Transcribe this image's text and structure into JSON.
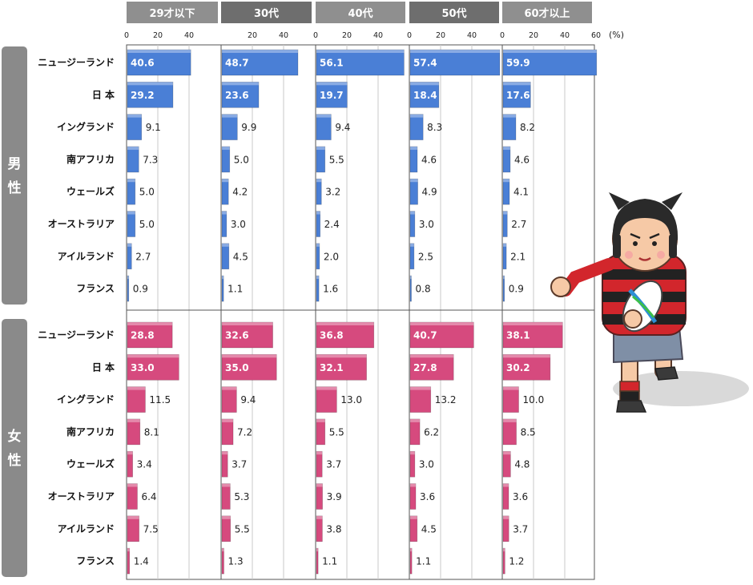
{
  "chart_data": {
    "type": "bar",
    "orientation": "horizontal",
    "unit": "(%)",
    "age_groups": [
      "29才以下",
      "30代",
      "40代",
      "50代",
      "60才以上"
    ],
    "categories": [
      "ニュージーランド",
      "日 本",
      "イングランド",
      "南アフリカ",
      "ウェールズ",
      "オーストラリア",
      "アイルランド",
      "フランス"
    ],
    "xlim": [
      0,
      60
    ],
    "xticks": [
      "0",
      "20",
      "40",
      "20",
      "40",
      "0",
      "20",
      "40",
      "0",
      "20",
      "40",
      "0",
      "20",
      "40",
      "60"
    ],
    "groups": [
      {
        "label": "男性",
        "color": "#4a7fd6",
        "series": [
          {
            "age": "29才以下",
            "values": [
              40.6,
              29.2,
              9.1,
              7.3,
              5.0,
              5.0,
              2.7,
              0.9
            ],
            "labels": [
              "40.6",
              "29.2",
              "9.1",
              "7.3",
              "5.0",
              "5.0",
              "2.7",
              "0.9"
            ]
          },
          {
            "age": "30代",
            "values": [
              48.7,
              23.6,
              9.9,
              5.0,
              4.2,
              3.0,
              4.5,
              1.1
            ],
            "labels": [
              "48.7",
              "23.6",
              "9.9",
              "5.0",
              "4.2",
              "3.0",
              "4.5",
              "1.1"
            ]
          },
          {
            "age": "40代",
            "values": [
              56.1,
              19.7,
              9.4,
              5.5,
              3.2,
              2.4,
              2.0,
              1.6
            ],
            "labels": [
              "56.1",
              "19.7",
              "9.4",
              "5.5",
              "3.2",
              "2.4",
              "2.0",
              "1.6"
            ]
          },
          {
            "age": "50代",
            "values": [
              57.4,
              18.4,
              8.3,
              4.6,
              4.9,
              3.0,
              2.5,
              0.8
            ],
            "labels": [
              "57.4",
              "18.4",
              "8.3",
              "4.6",
              "4.9",
              "3.0",
              "2.5",
              "0.8"
            ]
          },
          {
            "age": "60才以上",
            "values": [
              59.9,
              17.6,
              8.2,
              4.6,
              4.1,
              2.7,
              2.1,
              0.9
            ],
            "labels": [
              "59.9",
              "17.6",
              "8.2",
              "4.6",
              "4.1",
              "2.7",
              "2.1",
              "0.9"
            ]
          }
        ]
      },
      {
        "label": "女性",
        "color": "#d64a7e",
        "series": [
          {
            "age": "29才以下",
            "values": [
              28.8,
              33.0,
              11.5,
              8.1,
              3.4,
              6.4,
              7.5,
              1.4
            ],
            "labels": [
              "28.8",
              "33.0",
              "11.5",
              "8.1",
              "3.4",
              "6.4",
              "7.5",
              "1.4"
            ]
          },
          {
            "age": "30代",
            "values": [
              32.6,
              35.0,
              9.4,
              7.2,
              3.7,
              5.3,
              5.5,
              1.3
            ],
            "labels": [
              "32.6",
              "35.0",
              "9.4",
              "7.2",
              "3.7",
              "5.3",
              "5.5",
              "1.3"
            ]
          },
          {
            "age": "40代",
            "values": [
              36.8,
              32.1,
              13.0,
              5.5,
              3.7,
              3.9,
              3.8,
              1.1
            ],
            "labels": [
              "36.8",
              "32.1",
              "13.0",
              "5.5",
              "3.7",
              "3.9",
              "3.8",
              "1.1"
            ]
          },
          {
            "age": "50代",
            "values": [
              40.7,
              27.8,
              13.2,
              6.2,
              3.0,
              3.6,
              4.5,
              1.1
            ],
            "labels": [
              "40.7",
              "27.8",
              "13.2",
              "6.2",
              "3.0",
              "3.6",
              "4.5",
              "1.1"
            ]
          },
          {
            "age": "60才以上",
            "values": [
              38.1,
              30.2,
              10.0,
              8.5,
              4.8,
              3.6,
              3.7,
              1.2
            ],
            "labels": [
              "38.1",
              "30.2",
              "10.0",
              "8.5",
              "4.8",
              "3.6",
              "3.7",
              "1.2"
            ]
          }
        ]
      }
    ],
    "grid": true,
    "header_colors": [
      "#8f8f8f",
      "#6e6e6e"
    ],
    "side_label_color": "#8a8a8a"
  },
  "decoration": {
    "icon": "rugby-player-icon"
  }
}
